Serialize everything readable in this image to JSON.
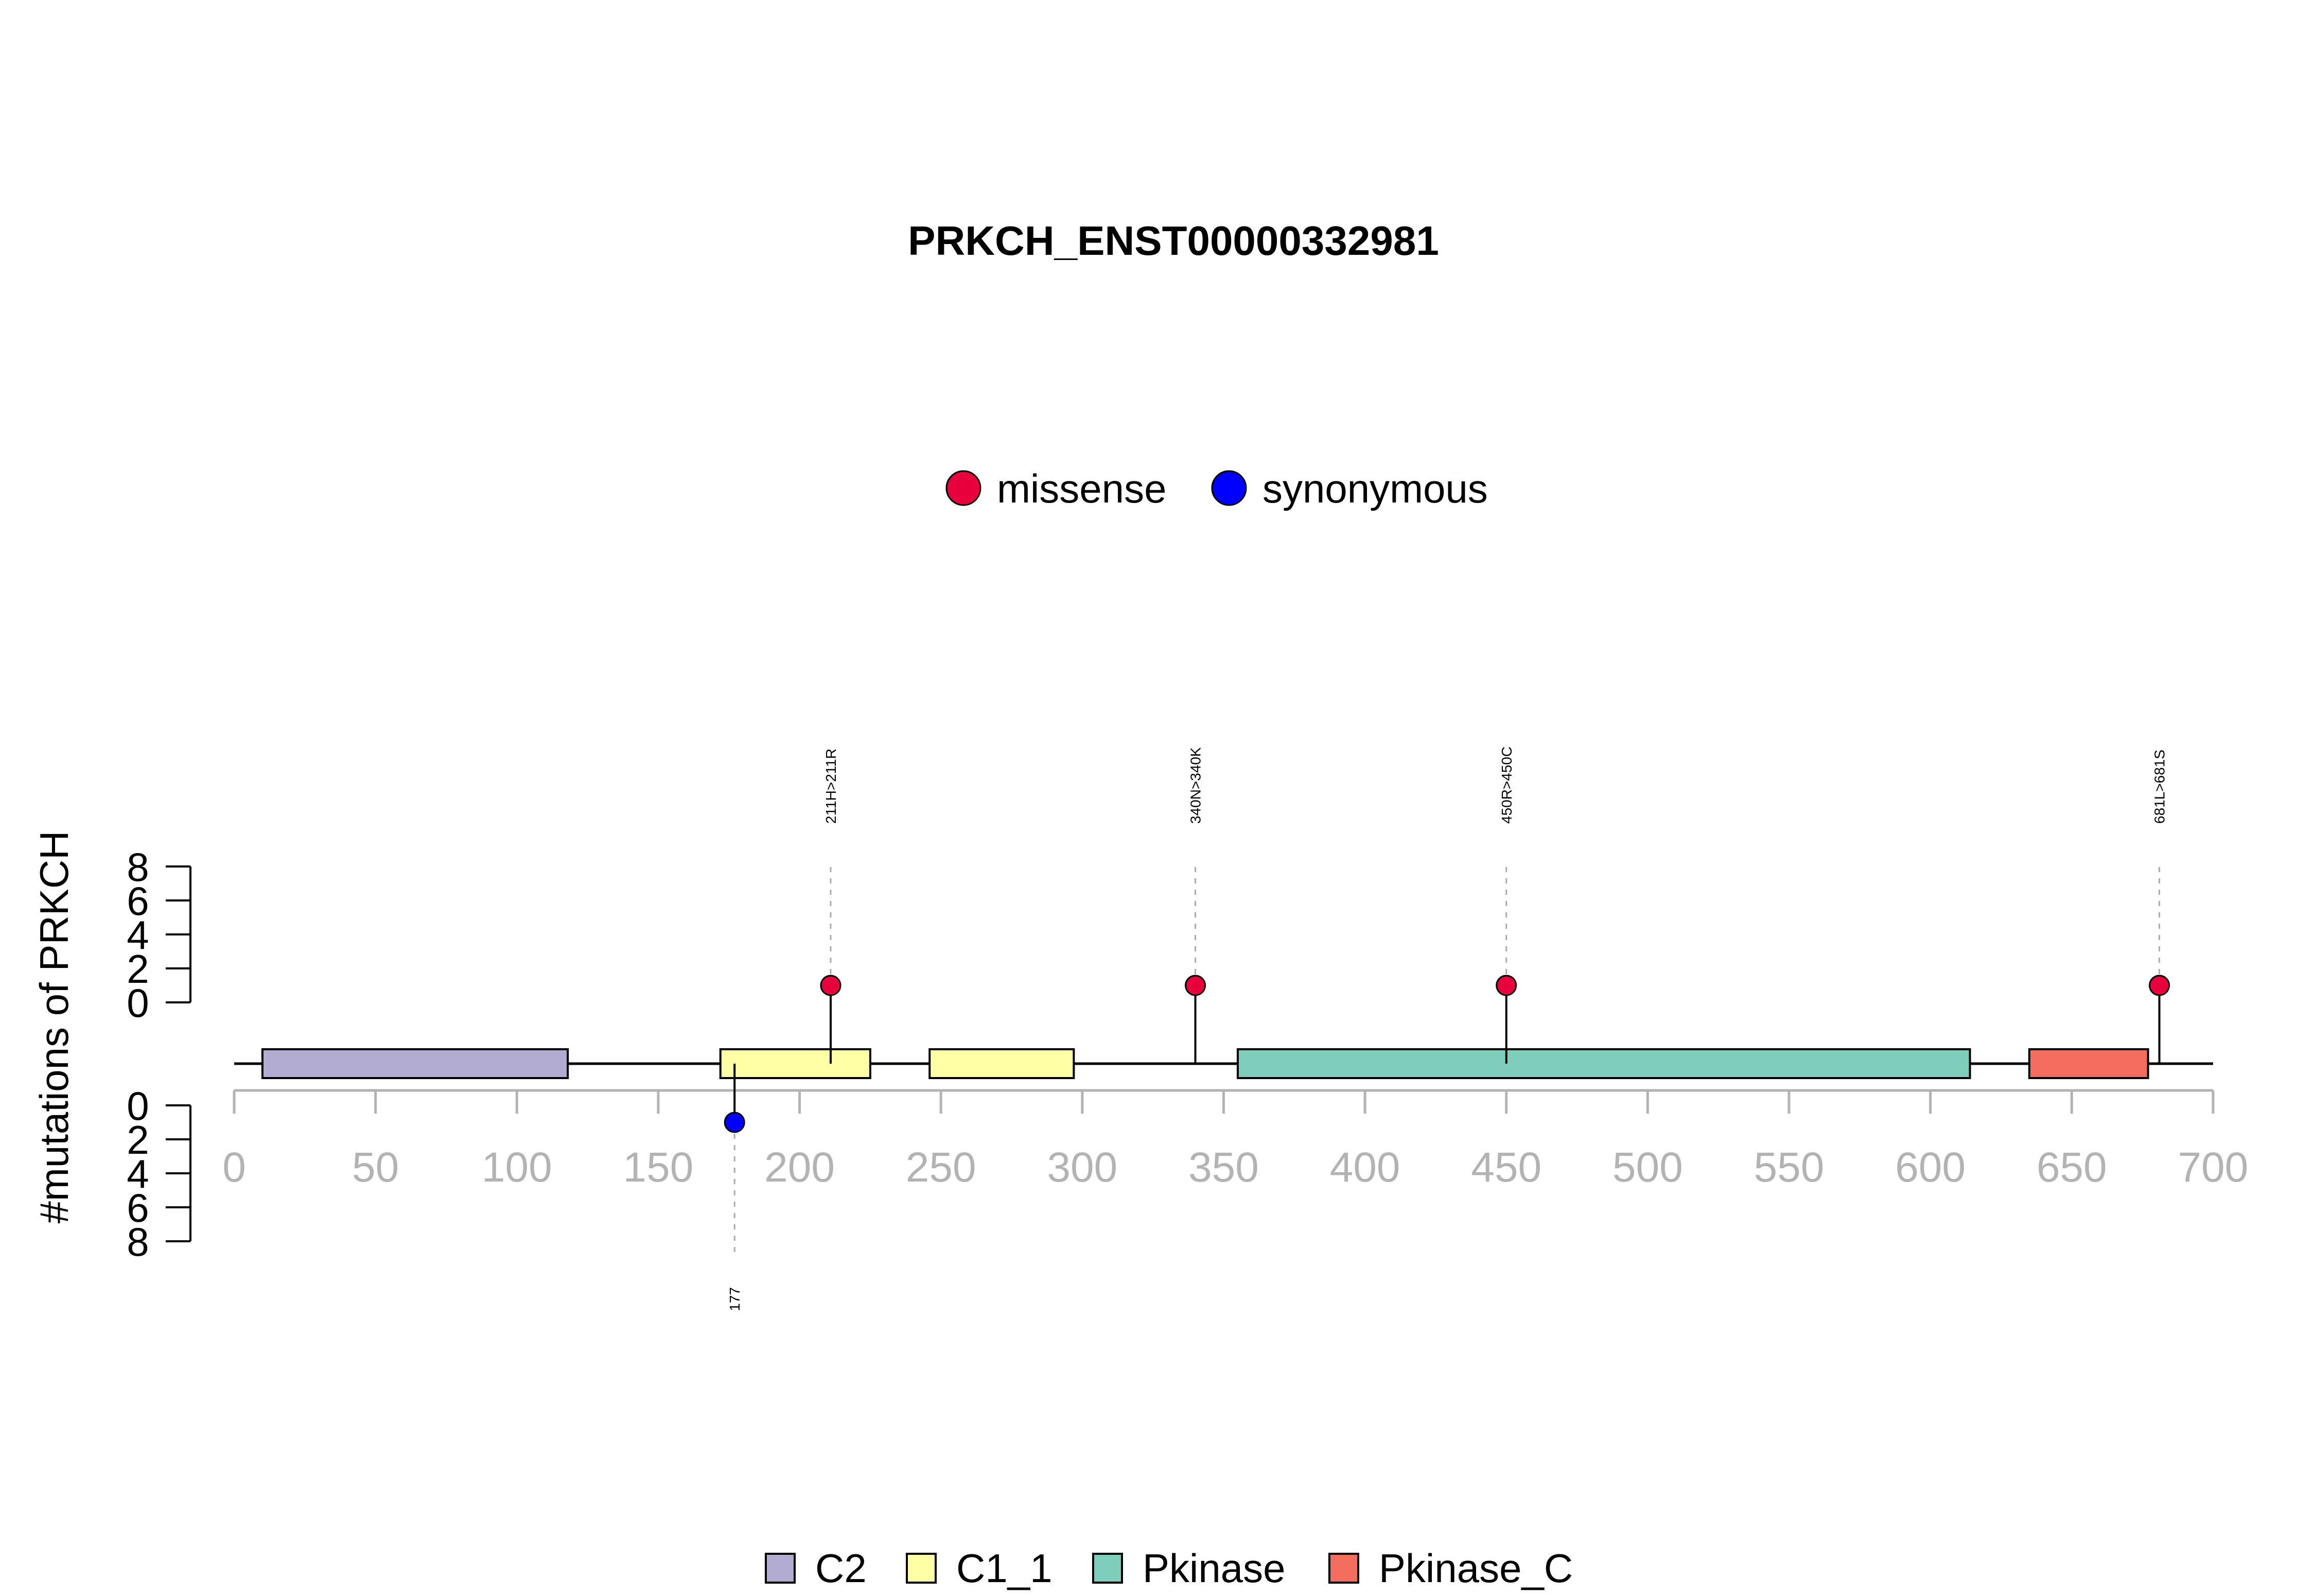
{
  "chart_data": {
    "type": "lollipop",
    "title": "PRKCH_ENST00000332981",
    "ylabel": "#mutations of PRKCH",
    "xlim": [
      0,
      700
    ],
    "x_ticks": [
      0,
      50,
      100,
      150,
      200,
      250,
      300,
      350,
      400,
      450,
      500,
      550,
      600,
      650,
      700
    ],
    "y_ticks": [
      0,
      2,
      4,
      6,
      8
    ],
    "ylim": [
      0,
      8
    ],
    "protein_length": 700,
    "mutation_legend": [
      {
        "name": "missense",
        "color": "#E8003C"
      },
      {
        "name": "synonymous",
        "color": "#0000FF"
      }
    ],
    "mutations": [
      {
        "label": "211H>211R",
        "position": 211,
        "count": 1,
        "type": "missense",
        "side": "top"
      },
      {
        "label": "340N>340K",
        "position": 340,
        "count": 1,
        "type": "missense",
        "side": "top"
      },
      {
        "label": "450R>450C",
        "position": 450,
        "count": 1,
        "type": "missense",
        "side": "top"
      },
      {
        "label": "681L>681S",
        "position": 681,
        "count": 1,
        "type": "missense",
        "side": "top"
      },
      {
        "label": "177",
        "position": 177,
        "count": 1,
        "type": "synonymous",
        "side": "bottom"
      }
    ],
    "domains": [
      {
        "name": "C2",
        "start": 10,
        "end": 118,
        "color": "#B2ABD2"
      },
      {
        "name": "C1_1",
        "start": 172,
        "end": 225,
        "color": "#FFFFA5"
      },
      {
        "name": "C1_1",
        "start": 246,
        "end": 297,
        "color": "#FFFFA5"
      },
      {
        "name": "Pkinase",
        "start": 355,
        "end": 614,
        "color": "#7FCDBB"
      },
      {
        "name": "Pkinase_C",
        "start": 635,
        "end": 677,
        "color": "#F46D5E"
      }
    ],
    "domain_legend": [
      {
        "name": "C2",
        "color": "#B2ABD2"
      },
      {
        "name": "C1_1",
        "color": "#FFFFA5"
      },
      {
        "name": "Pkinase",
        "color": "#7FCDBB"
      },
      {
        "name": "Pkinase_C",
        "color": "#F46D5E"
      }
    ]
  }
}
